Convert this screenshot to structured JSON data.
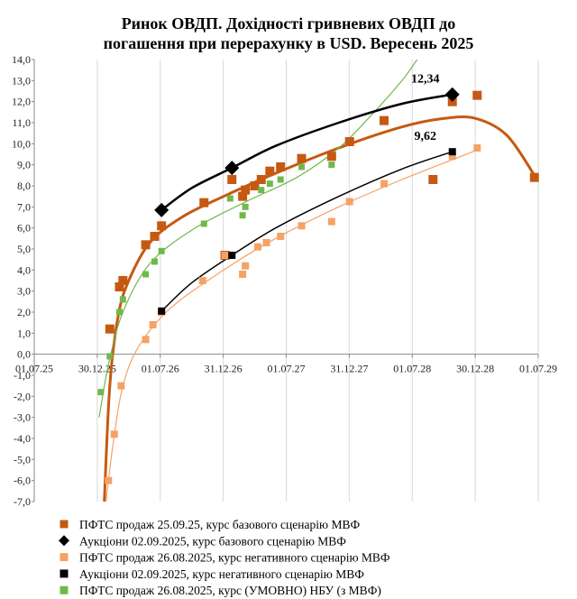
{
  "chart_data": {
    "type": "scatter",
    "title": [
      "Ринок ОВДП. Дохідності  гривневих ОВДП до",
      "погашення при перерахунку в USD. Вересень 2025"
    ],
    "xlabel": "",
    "ylabel": "",
    "x_tick_labels": [
      "01.07.25",
      "30.12.25",
      "01.07.26",
      "31.12.26",
      "01.07.27",
      "31.12.27",
      "01.07.28",
      "30.12.28",
      "01.07.29"
    ],
    "y_tick_labels": [
      "14,0",
      "13,0",
      "12,0",
      "11,0",
      "10,0",
      "9,0",
      "8,0",
      "7,0",
      "6,0",
      "5,0",
      "4,0",
      "3,0",
      "2,0",
      "1,0",
      "0,0",
      "-1,0",
      "-2,0",
      "-3,0",
      "-4,0",
      "-5,0",
      "-6,0",
      "-7,0"
    ],
    "xlim": [
      "2025-07-01",
      "2029-07-01"
    ],
    "ylim": [
      -7,
      14
    ],
    "grid": "vertical",
    "legend_position": "bottom",
    "colors": {
      "pftss_base": "#c65911",
      "auction": "#000000",
      "pftss_neg": "#f4a266",
      "nbu": "#70b84a",
      "grid": "#d9d9d9"
    },
    "series": [
      {
        "name": "ПФТС  продаж 25.09.25,  курс базового сценарію МВФ",
        "marker": "square",
        "color": "#c65911",
        "points": [
          [
            "2026-02-05",
            1.2
          ],
          [
            "2026-03-05",
            3.2
          ],
          [
            "2026-03-15",
            3.5
          ],
          [
            "2026-05-20",
            5.2
          ],
          [
            "2026-06-15",
            5.6
          ],
          [
            "2026-07-05",
            6.1
          ],
          [
            "2026-11-05",
            7.2
          ],
          [
            "2027-01-05",
            4.7
          ],
          [
            "2027-01-25",
            8.3
          ],
          [
            "2027-02-25",
            7.5
          ],
          [
            "2027-03-05",
            7.8
          ],
          [
            "2027-04-01",
            8.0
          ],
          [
            "2027-04-20",
            8.3
          ],
          [
            "2027-05-15",
            8.7
          ],
          [
            "2027-06-15",
            8.9
          ],
          [
            "2027-08-15",
            9.3
          ],
          [
            "2027-11-10",
            9.4
          ],
          [
            "2028-01-01",
            10.1
          ],
          [
            "2028-04-10",
            11.1
          ],
          [
            "2028-08-30",
            8.3
          ],
          [
            "2028-10-25",
            12.0
          ],
          [
            "2029-01-05",
            12.3
          ],
          [
            "2029-06-20",
            8.4
          ]
        ],
        "trend": [
          [
            "2026-01-20",
            -7.0
          ],
          [
            "2026-02-05",
            -1.5
          ],
          [
            "2026-03-01",
            1.8
          ],
          [
            "2026-04-01",
            3.5
          ],
          [
            "2026-06-01",
            5.3
          ],
          [
            "2026-09-01",
            6.5
          ],
          [
            "2027-01-01",
            7.5
          ],
          [
            "2027-06-01",
            8.6
          ],
          [
            "2027-12-01",
            9.8
          ],
          [
            "2028-06-01",
            10.8
          ],
          [
            "2028-10-01",
            11.2
          ],
          [
            "2029-01-01",
            11.2
          ],
          [
            "2029-04-01",
            10.4
          ],
          [
            "2029-06-20",
            8.5
          ]
        ]
      },
      {
        "name": "Аукціони 02.09.2025,  курс базового сценарію МВФ",
        "marker": "diamond",
        "color": "#000000",
        "points": [
          [
            "2026-07-05",
            6.85
          ],
          [
            "2027-01-25",
            8.85
          ],
          [
            "2028-10-25",
            12.34
          ]
        ],
        "trend": [
          [
            "2026-07-05",
            6.85
          ],
          [
            "2026-10-01",
            7.9
          ],
          [
            "2027-01-25",
            8.85
          ],
          [
            "2027-06-01",
            9.9
          ],
          [
            "2027-12-01",
            11.0
          ],
          [
            "2028-06-01",
            11.9
          ],
          [
            "2028-10-25",
            12.34
          ]
        ],
        "annotation": "12,34"
      },
      {
        "name": "ПФТС  продаж 26.08.2025,  курс негативного сценарію МВФ",
        "marker": "square",
        "color": "#f4a266",
        "points": [
          [
            "2026-02-01",
            -6.0
          ],
          [
            "2026-02-18",
            -3.8
          ],
          [
            "2026-03-10",
            -1.5
          ],
          [
            "2026-05-20",
            0.7
          ],
          [
            "2026-06-10",
            1.4
          ],
          [
            "2026-07-05",
            2.0
          ],
          [
            "2026-11-01",
            3.5
          ],
          [
            "2027-01-05",
            4.7
          ],
          [
            "2027-02-25",
            3.8
          ],
          [
            "2027-03-05",
            4.2
          ],
          [
            "2027-04-10",
            5.1
          ],
          [
            "2027-05-05",
            5.3
          ],
          [
            "2027-06-15",
            5.6
          ],
          [
            "2027-08-15",
            6.1
          ],
          [
            "2027-11-10",
            6.3
          ],
          [
            "2028-01-01",
            7.25
          ],
          [
            "2028-04-10",
            8.1
          ],
          [
            "2028-10-25",
            9.4
          ],
          [
            "2029-01-05",
            9.8
          ]
        ],
        "trend": [
          [
            "2026-01-25",
            -7.0
          ],
          [
            "2026-02-15",
            -4.2
          ],
          [
            "2026-03-15",
            -1.5
          ],
          [
            "2026-05-01",
            0.4
          ],
          [
            "2026-08-01",
            2.2
          ],
          [
            "2027-01-01",
            4.0
          ],
          [
            "2027-06-01",
            5.5
          ],
          [
            "2027-12-01",
            7.0
          ],
          [
            "2028-06-01",
            8.3
          ],
          [
            "2029-01-05",
            9.7
          ]
        ]
      },
      {
        "name": "Аукціони 02.09.2025,  курс негативного сценарію МВФ",
        "marker": "square",
        "color": "#000000",
        "points": [
          [
            "2026-07-05",
            2.05
          ],
          [
            "2027-01-25",
            4.7
          ],
          [
            "2028-10-25",
            9.62
          ]
        ],
        "trend": [
          [
            "2026-07-05",
            2.05
          ],
          [
            "2026-10-01",
            3.4
          ],
          [
            "2027-01-25",
            4.7
          ],
          [
            "2027-06-01",
            6.0
          ],
          [
            "2027-12-01",
            7.5
          ],
          [
            "2028-06-01",
            8.8
          ],
          [
            "2028-10-25",
            9.62
          ]
        ],
        "annotation": "9,62"
      },
      {
        "name": "ПФТС  продаж 26.08.2025,  курс (УМОВНО)  НБУ  (з МВФ)",
        "marker": "square",
        "color": "#70b84a",
        "points": [
          [
            "2026-01-10",
            -1.8
          ],
          [
            "2026-02-05",
            -0.1
          ],
          [
            "2026-03-05",
            2.0
          ],
          [
            "2026-03-15",
            2.6
          ],
          [
            "2026-05-20",
            3.8
          ],
          [
            "2026-06-15",
            4.4
          ],
          [
            "2026-07-05",
            4.9
          ],
          [
            "2026-11-05",
            6.2
          ],
          [
            "2027-01-20",
            7.4
          ],
          [
            "2027-02-25",
            6.6
          ],
          [
            "2027-03-05",
            7.0
          ],
          [
            "2027-04-20",
            7.8
          ],
          [
            "2027-05-15",
            8.1
          ],
          [
            "2027-06-15",
            8.3
          ],
          [
            "2027-08-15",
            8.9
          ],
          [
            "2027-11-10",
            9.0
          ]
        ],
        "trend": [
          [
            "2026-01-05",
            -3.0
          ],
          [
            "2026-02-01",
            -0.5
          ],
          [
            "2026-03-15",
            2.0
          ],
          [
            "2026-06-01",
            4.3
          ],
          [
            "2026-10-01",
            5.9
          ],
          [
            "2027-03-01",
            7.2
          ],
          [
            "2027-08-01",
            8.4
          ],
          [
            "2027-12-01",
            9.8
          ],
          [
            "2028-03-01",
            11.3
          ],
          [
            "2028-06-01",
            13.0
          ],
          [
            "2028-07-15",
            14.0
          ]
        ]
      }
    ]
  }
}
